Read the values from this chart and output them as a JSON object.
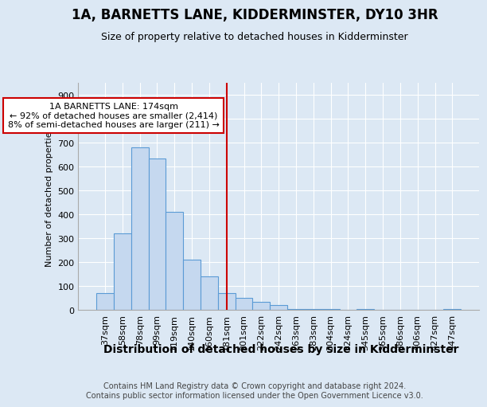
{
  "title": "1A, BARNETTS LANE, KIDDERMINSTER, DY10 3HR",
  "subtitle": "Size of property relative to detached houses in Kidderminster",
  "xlabel": "Distribution of detached houses by size in Kidderminster",
  "ylabel": "Number of detached properties",
  "footer_line1": "Contains HM Land Registry data © Crown copyright and database right 2024.",
  "footer_line2": "Contains public sector information licensed under the Open Government Licence v3.0.",
  "categories": [
    "37sqm",
    "58sqm",
    "78sqm",
    "99sqm",
    "119sqm",
    "140sqm",
    "160sqm",
    "181sqm",
    "201sqm",
    "222sqm",
    "242sqm",
    "263sqm",
    "283sqm",
    "304sqm",
    "324sqm",
    "345sqm",
    "365sqm",
    "386sqm",
    "406sqm",
    "427sqm",
    "447sqm"
  ],
  "values": [
    70,
    320,
    680,
    635,
    410,
    210,
    140,
    70,
    50,
    35,
    20,
    5,
    5,
    5,
    0,
    5,
    0,
    0,
    0,
    0,
    5
  ],
  "bar_color": "#c5d8ef",
  "bar_edge_color": "#5b9bd5",
  "vline_x": 7,
  "annotation_title": "1A BARNETTS LANE: 174sqm",
  "annotation_line2": "← 92% of detached houses are smaller (2,414)",
  "annotation_line3": "8% of semi-detached houses are larger (211) →",
  "annotation_box_facecolor": "#ffffff",
  "annotation_box_edgecolor": "#cc0000",
  "vline_color": "#cc0000",
  "ylim": [
    0,
    950
  ],
  "yticks": [
    0,
    100,
    200,
    300,
    400,
    500,
    600,
    700,
    800,
    900
  ],
  "bg_color": "#dce8f4",
  "plot_bg_color": "#dce8f4",
  "title_fontsize": 12,
  "subtitle_fontsize": 9,
  "xlabel_fontsize": 10,
  "ylabel_fontsize": 8,
  "tick_fontsize": 8,
  "footer_fontsize": 7
}
